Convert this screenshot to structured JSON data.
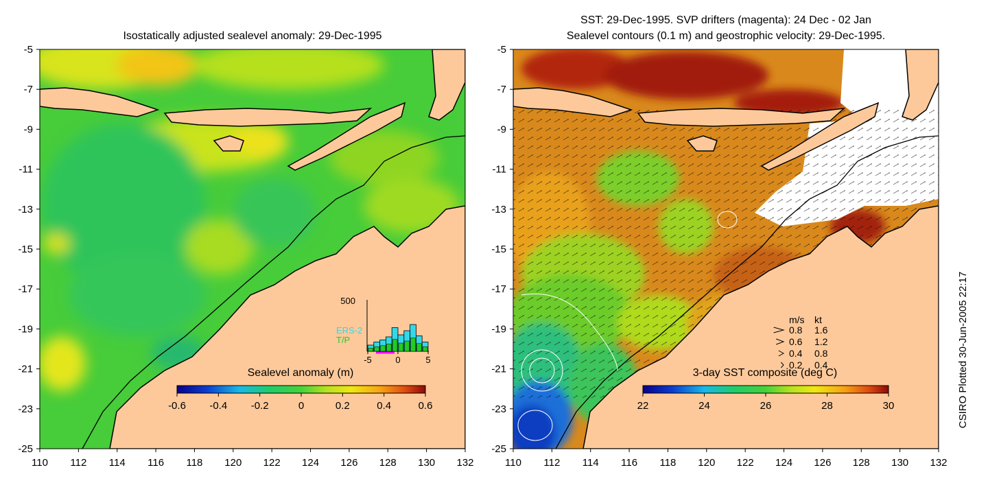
{
  "left_panel": {
    "title": "Isostatically adjusted sealevel anomaly: 29-Dec-1995",
    "colorbar": {
      "label": "Sealevel anomaly (m)",
      "ticks": [
        "-0.6",
        "-0.4",
        "-0.2",
        "0",
        "0.2",
        "0.4",
        "0.6"
      ],
      "min": -0.6,
      "max": 0.6
    },
    "histogram": {
      "ymax_label": "500",
      "ymax": 500,
      "series": [
        {
          "name": "ERS-2",
          "color": "#33d7e8"
        },
        {
          "name": "T/P",
          "color": "#22cc22"
        }
      ],
      "bins": [
        -5,
        -4,
        -3,
        -2,
        -1,
        0,
        1,
        2,
        3,
        4,
        5
      ],
      "ers2_counts": [
        60,
        90,
        110,
        140,
        230,
        160,
        200,
        260,
        150,
        90
      ],
      "tp_counts": [
        70,
        95,
        100,
        120,
        150,
        130,
        160,
        180,
        140,
        100
      ],
      "x_ticks": [
        "-5",
        "0",
        "5"
      ]
    }
  },
  "right_panel": {
    "title_line1": "SST: 29-Dec-1995. SVP drifters (magenta): 24 Dec - 02 Jan",
    "title_line2": "Sealevel contours (0.1 m) and geostrophic velocity: 29-Dec-1995.",
    "colorbar": {
      "label": "3-day SST composite (deg C)",
      "ticks": [
        "22",
        "24",
        "26",
        "28",
        "30"
      ],
      "min": 22,
      "max": 30
    },
    "velocity_legend": {
      "header_ms": "m/s",
      "header_kt": "kt",
      "rows": [
        {
          "ms": "0.8",
          "kt": "1.6"
        },
        {
          "ms": "0.6",
          "kt": "1.2"
        },
        {
          "ms": "0.4",
          "kt": "0.8"
        },
        {
          "ms": "0.2",
          "kt": "0.4"
        }
      ]
    }
  },
  "axes": {
    "y_ticks": [
      "-5",
      "-7",
      "-9",
      "-11",
      "-13",
      "-15",
      "-17",
      "-19",
      "-21",
      "-23",
      "-25"
    ],
    "x_ticks": [
      "110",
      "112",
      "114",
      "116",
      "118",
      "120",
      "122",
      "124",
      "126",
      "128",
      "130",
      "132"
    ],
    "lat_range": [
      -25,
      -5
    ],
    "lon_range": [
      110,
      132
    ]
  },
  "footer": "CSIRO Plotted 30-Jun-2005 22:17",
  "colors": {
    "land": "#fdc99b",
    "ocean_base": "#3fc83c",
    "sst_base": "#d98a1c"
  }
}
